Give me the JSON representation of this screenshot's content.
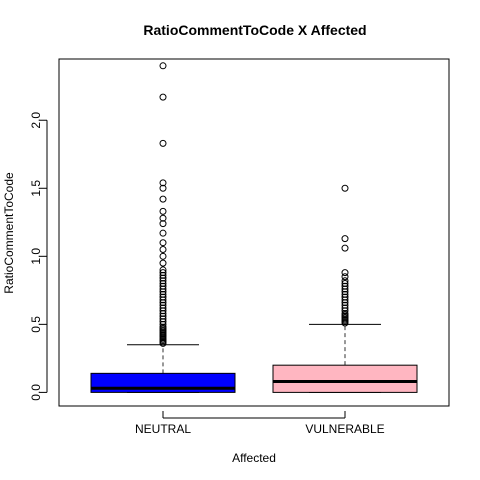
{
  "chart_data": {
    "type": "boxplot",
    "title": "RatioCommentToCode X Affected",
    "xlabel": "Affected",
    "ylabel": "RatioCommentToCode",
    "ylim": [
      -0.1,
      2.45
    ],
    "yticks": [
      0.0,
      0.5,
      1.0,
      1.5,
      2.0
    ],
    "ytick_labels": [
      "0.0",
      "0.5",
      "1.0",
      "1.5",
      "2.0"
    ],
    "grid": false,
    "categories": [
      "NEUTRAL",
      "VULNERABLE"
    ],
    "boxes": [
      {
        "name": "NEUTRAL",
        "color": "#0000ff",
        "min": 0.0,
        "q1": 0.0,
        "median": 0.03,
        "q3": 0.14,
        "whisker_high": 0.35,
        "outliers": [
          0.36,
          0.37,
          0.38,
          0.39,
          0.4,
          0.41,
          0.42,
          0.43,
          0.44,
          0.45,
          0.46,
          0.47,
          0.48,
          0.5,
          0.52,
          0.54,
          0.56,
          0.58,
          0.6,
          0.62,
          0.64,
          0.66,
          0.68,
          0.7,
          0.72,
          0.74,
          0.76,
          0.78,
          0.8,
          0.82,
          0.84,
          0.86,
          0.88,
          0.9,
          0.95,
          1.0,
          1.05,
          1.1,
          1.17,
          1.24,
          1.28,
          1.33,
          1.42,
          1.5,
          1.54,
          1.83,
          2.17,
          2.4
        ]
      },
      {
        "name": "VULNERABLE",
        "color": "#ffb6c1",
        "min": 0.0,
        "q1": 0.0,
        "median": 0.08,
        "q3": 0.2,
        "whisker_high": 0.5,
        "outliers": [
          0.51,
          0.52,
          0.53,
          0.54,
          0.55,
          0.56,
          0.57,
          0.58,
          0.6,
          0.62,
          0.64,
          0.66,
          0.68,
          0.7,
          0.72,
          0.74,
          0.76,
          0.78,
          0.8,
          0.82,
          0.85,
          0.88,
          1.06,
          1.13,
          1.5
        ]
      }
    ]
  }
}
